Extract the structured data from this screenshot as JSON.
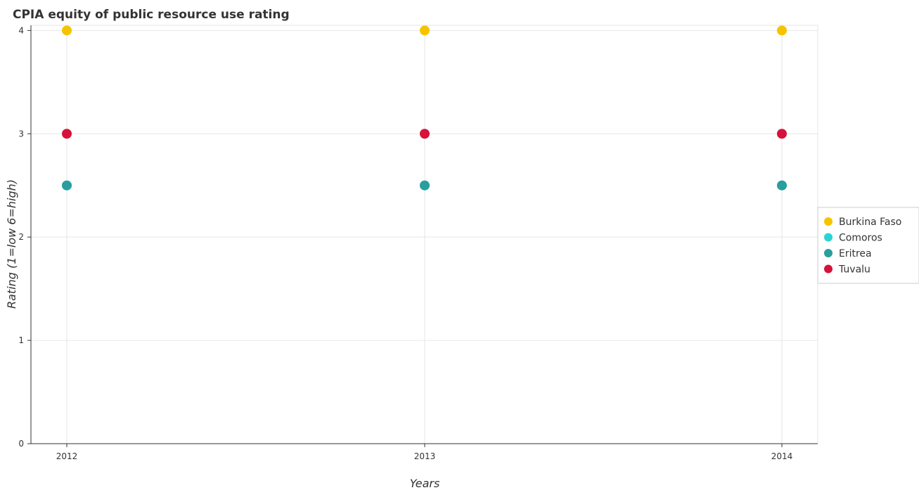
{
  "chart_data": {
    "type": "scatter",
    "title": "CPIA equity of public resource use rating",
    "xlabel": "Years",
    "ylabel": "Rating (1=low 6=high)",
    "categories": [
      "2012",
      "2013",
      "2014"
    ],
    "ylim": [
      0,
      4.05
    ],
    "yticks": [
      "0",
      "1",
      "2",
      "3",
      "4"
    ],
    "grid": true,
    "legend_position": "right",
    "series": [
      {
        "name": "Burkina Faso",
        "color": "#f5c400",
        "values": [
          4,
          4,
          4
        ]
      },
      {
        "name": "Comoros",
        "color": "#2ad4d4",
        "values": [
          2.5,
          2.5,
          2.5
        ]
      },
      {
        "name": "Eritrea",
        "color": "#2a9e9e",
        "values": [
          2.5,
          2.5,
          2.5
        ]
      },
      {
        "name": "Tuvalu",
        "color": "#d6123a",
        "values": [
          3,
          3,
          3
        ]
      }
    ]
  }
}
